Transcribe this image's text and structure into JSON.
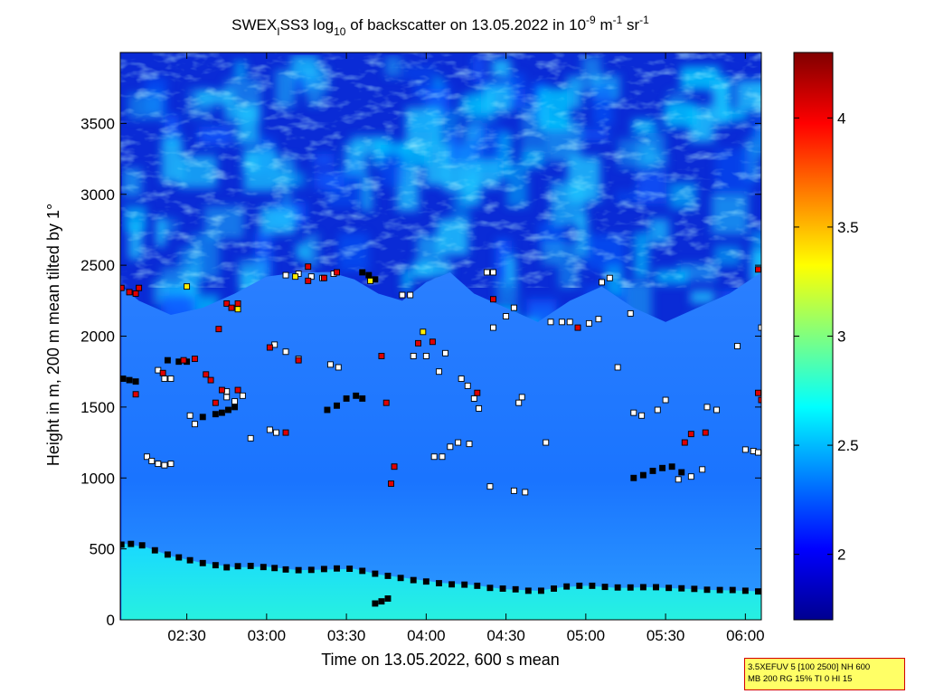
{
  "chart_data": {
    "type": "heatmap",
    "title": {
      "prefix": "SWEX",
      "sub_i": "I",
      "mid": "SS3 log",
      "sub_10": "10",
      "mid2": " of backscatter on 13.05.2022 in 10",
      "sup_m9": "-9",
      "unit_m": " m",
      "sup_m1a": "-1",
      "unit_sr": " sr",
      "sup_m1b": "-1"
    },
    "xlabel": "Time on 13.05.2022, 600 s mean",
    "ylabel": "Height in m, 200 m mean tilted by 1°",
    "x_range_hours": [
      2.083,
      6.1
    ],
    "y_range_m": [
      0,
      4000
    ],
    "x_ticks": [
      {
        "label": "02:30",
        "hour": 2.5
      },
      {
        "label": "03:00",
        "hour": 3.0
      },
      {
        "label": "03:30",
        "hour": 3.5
      },
      {
        "label": "04:00",
        "hour": 4.0
      },
      {
        "label": "04:30",
        "hour": 4.5
      },
      {
        "label": "05:00",
        "hour": 5.0
      },
      {
        "label": "05:30",
        "hour": 5.5
      },
      {
        "label": "06:00",
        "hour": 6.0
      }
    ],
    "y_ticks": [
      0,
      500,
      1000,
      1500,
      2000,
      2500,
      3000,
      3500
    ],
    "colorbar": {
      "range": [
        1.7,
        4.3
      ],
      "ticks": [
        {
          "label": "2",
          "value": 2.0
        },
        {
          "label": "2.5",
          "value": 2.5
        },
        {
          "label": "3",
          "value": 3.0
        },
        {
          "label": "3.5",
          "value": 3.5
        },
        {
          "label": "4",
          "value": 4.0
        }
      ],
      "colormap": "jet"
    },
    "layer_structure": {
      "surface_layer_top_m": [
        [
          2.09,
          540
        ],
        [
          2.25,
          510
        ],
        [
          2.4,
          450
        ],
        [
          2.6,
          400
        ],
        [
          2.8,
          370
        ],
        [
          3.0,
          375
        ],
        [
          3.2,
          350
        ],
        [
          3.4,
          355
        ],
        [
          3.55,
          360
        ],
        [
          3.7,
          320
        ],
        [
          3.9,
          290
        ],
        [
          4.1,
          260
        ],
        [
          4.3,
          245
        ],
        [
          4.5,
          215
        ],
        [
          4.7,
          205
        ],
        [
          4.85,
          230
        ],
        [
          5.0,
          240
        ],
        [
          5.2,
          225
        ],
        [
          5.4,
          230
        ],
        [
          5.6,
          220
        ],
        [
          5.8,
          210
        ],
        [
          6.0,
          205
        ],
        [
          6.1,
          200
        ]
      ],
      "boundary_layer_top_m": [
        [
          2.09,
          2350
        ],
        [
          2.2,
          2250
        ],
        [
          2.4,
          2150
        ],
        [
          2.6,
          2200
        ],
        [
          2.8,
          2300
        ],
        [
          3.0,
          2420
        ],
        [
          3.2,
          2450
        ],
        [
          3.4,
          2450
        ],
        [
          3.55,
          2400
        ],
        [
          3.7,
          2300
        ],
        [
          3.85,
          2250
        ],
        [
          4.0,
          2380
        ],
        [
          4.15,
          2450
        ],
        [
          4.3,
          2300
        ],
        [
          4.5,
          2200
        ],
        [
          4.7,
          2100
        ],
        [
          4.9,
          2250
        ],
        [
          5.1,
          2350
        ],
        [
          5.3,
          2200
        ],
        [
          5.5,
          2100
        ],
        [
          5.7,
          2200
        ],
        [
          5.9,
          2300
        ],
        [
          6.1,
          2450
        ]
      ]
    },
    "series": [
      {
        "marker": "black",
        "points": [
          [
            2.09,
            530
          ],
          [
            2.15,
            535
          ],
          [
            2.22,
            525
          ],
          [
            2.3,
            490
          ],
          [
            2.38,
            460
          ],
          [
            2.45,
            440
          ],
          [
            2.52,
            420
          ],
          [
            2.6,
            400
          ],
          [
            2.68,
            385
          ],
          [
            2.75,
            370
          ],
          [
            2.82,
            378
          ],
          [
            2.9,
            380
          ],
          [
            2.98,
            372
          ],
          [
            3.05,
            365
          ],
          [
            3.12,
            355
          ],
          [
            3.2,
            350
          ],
          [
            3.28,
            352
          ],
          [
            3.36,
            358
          ],
          [
            3.44,
            362
          ],
          [
            3.52,
            360
          ],
          [
            3.6,
            345
          ],
          [
            3.68,
            325
          ],
          [
            3.76,
            310
          ],
          [
            3.84,
            295
          ],
          [
            3.92,
            280
          ],
          [
            4.0,
            270
          ],
          [
            4.08,
            258
          ],
          [
            4.16,
            250
          ],
          [
            4.24,
            248
          ],
          [
            4.32,
            240
          ],
          [
            4.4,
            225
          ],
          [
            4.48,
            220
          ],
          [
            4.56,
            215
          ],
          [
            4.64,
            205
          ],
          [
            4.72,
            205
          ],
          [
            4.8,
            220
          ],
          [
            4.88,
            235
          ],
          [
            4.96,
            240
          ],
          [
            5.04,
            240
          ],
          [
            5.12,
            232
          ],
          [
            5.2,
            228
          ],
          [
            5.28,
            228
          ],
          [
            5.36,
            230
          ],
          [
            5.44,
            230
          ],
          [
            5.52,
            225
          ],
          [
            5.6,
            222
          ],
          [
            5.68,
            218
          ],
          [
            5.76,
            212
          ],
          [
            5.84,
            210
          ],
          [
            5.92,
            210
          ],
          [
            6.0,
            205
          ],
          [
            6.08,
            200
          ],
          [
            3.68,
            115
          ],
          [
            3.72,
            130
          ],
          [
            3.76,
            150
          ],
          [
            2.6,
            1430
          ],
          [
            2.68,
            1450
          ],
          [
            2.72,
            1460
          ],
          [
            2.76,
            1480
          ],
          [
            2.8,
            1500
          ],
          [
            3.38,
            1480
          ],
          [
            3.44,
            1510
          ],
          [
            3.5,
            1560
          ],
          [
            3.56,
            1580
          ],
          [
            3.6,
            1560
          ],
          [
            5.3,
            1000
          ],
          [
            5.36,
            1020
          ],
          [
            5.42,
            1050
          ],
          [
            5.48,
            1070
          ],
          [
            5.54,
            1080
          ],
          [
            5.6,
            1040
          ],
          [
            2.1,
            1700
          ],
          [
            2.14,
            1690
          ],
          [
            2.18,
            1680
          ],
          [
            3.6,
            2450
          ],
          [
            3.64,
            2430
          ],
          [
            3.68,
            2400
          ],
          [
            2.38,
            1830
          ],
          [
            2.45,
            1820
          ],
          [
            2.5,
            1820
          ]
        ]
      },
      {
        "marker": "white",
        "points": [
          [
            2.25,
            1150
          ],
          [
            2.28,
            1120
          ],
          [
            2.32,
            1100
          ],
          [
            2.36,
            1090
          ],
          [
            2.4,
            1100
          ],
          [
            2.32,
            1760
          ],
          [
            2.36,
            1700
          ],
          [
            2.4,
            1700
          ],
          [
            2.75,
            1570
          ],
          [
            2.8,
            1540
          ],
          [
            2.85,
            1580
          ],
          [
            3.02,
            1340
          ],
          [
            3.06,
            1320
          ],
          [
            3.05,
            1940
          ],
          [
            3.12,
            1890
          ],
          [
            3.2,
            1840
          ],
          [
            3.4,
            1800
          ],
          [
            3.45,
            1780
          ],
          [
            3.12,
            2430
          ],
          [
            3.2,
            2440
          ],
          [
            3.28,
            2420
          ],
          [
            3.35,
            2410
          ],
          [
            3.42,
            2440
          ],
          [
            3.85,
            2290
          ],
          [
            3.9,
            2290
          ],
          [
            3.92,
            1860
          ],
          [
            4.0,
            1860
          ],
          [
            4.08,
            1750
          ],
          [
            4.12,
            1880
          ],
          [
            4.05,
            1150
          ],
          [
            4.1,
            1150
          ],
          [
            4.15,
            1220
          ],
          [
            4.2,
            1250
          ],
          [
            4.27,
            1240
          ],
          [
            4.22,
            1700
          ],
          [
            4.26,
            1650
          ],
          [
            4.33,
            1490
          ],
          [
            4.4,
            940
          ],
          [
            4.55,
            910
          ],
          [
            4.62,
            900
          ],
          [
            4.42,
            2060
          ],
          [
            4.5,
            2140
          ],
          [
            4.55,
            2200
          ],
          [
            4.58,
            1530
          ],
          [
            4.6,
            1570
          ],
          [
            4.75,
            1250
          ],
          [
            4.78,
            2100
          ],
          [
            4.85,
            2100
          ],
          [
            4.9,
            2100
          ],
          [
            5.02,
            2090
          ],
          [
            5.08,
            2120
          ],
          [
            5.1,
            2380
          ],
          [
            5.15,
            2410
          ],
          [
            5.2,
            1780
          ],
          [
            5.28,
            2160
          ],
          [
            5.3,
            1460
          ],
          [
            5.35,
            1440
          ],
          [
            5.45,
            1480
          ],
          [
            5.5,
            1550
          ],
          [
            5.76,
            1500
          ],
          [
            5.82,
            1480
          ],
          [
            5.95,
            1930
          ],
          [
            6.0,
            1200
          ],
          [
            6.05,
            1190
          ],
          [
            6.08,
            1180
          ],
          [
            6.1,
            2060
          ],
          [
            5.58,
            990
          ],
          [
            5.66,
            1010
          ],
          [
            5.73,
            1060
          ],
          [
            4.38,
            2450
          ],
          [
            4.42,
            2450
          ],
          [
            2.75,
            1610
          ],
          [
            2.9,
            1280
          ],
          [
            2.55,
            1380
          ],
          [
            2.52,
            1440
          ],
          [
            4.3,
            1560
          ]
        ]
      },
      {
        "marker": "red",
        "points": [
          [
            2.09,
            2340
          ],
          [
            2.14,
            2310
          ],
          [
            2.18,
            2300
          ],
          [
            2.2,
            2340
          ],
          [
            2.18,
            1590
          ],
          [
            2.35,
            1740
          ],
          [
            2.48,
            1830
          ],
          [
            2.55,
            1840
          ],
          [
            2.62,
            1730
          ],
          [
            2.65,
            1690
          ],
          [
            2.68,
            1530
          ],
          [
            2.7,
            2050
          ],
          [
            2.75,
            2230
          ],
          [
            2.78,
            2200
          ],
          [
            2.82,
            1620
          ],
          [
            3.02,
            1920
          ],
          [
            3.12,
            1320
          ],
          [
            3.2,
            1830
          ],
          [
            3.26,
            2490
          ],
          [
            3.36,
            2410
          ],
          [
            3.44,
            2450
          ],
          [
            3.72,
            1860
          ],
          [
            3.75,
            1530
          ],
          [
            3.78,
            960
          ],
          [
            3.8,
            1080
          ],
          [
            3.95,
            1950
          ],
          [
            4.04,
            1960
          ],
          [
            4.32,
            1600
          ],
          [
            4.42,
            2260
          ],
          [
            4.95,
            2060
          ],
          [
            5.62,
            1250
          ],
          [
            5.66,
            1310
          ],
          [
            5.75,
            1320
          ],
          [
            6.08,
            1600
          ],
          [
            6.1,
            1550
          ],
          [
            6.08,
            2470
          ],
          [
            6.12,
            2490
          ],
          [
            2.72,
            1620
          ],
          [
            2.82,
            2230
          ],
          [
            3.26,
            2390
          ]
        ]
      },
      {
        "marker": "yellow",
        "points": [
          [
            2.5,
            2350
          ],
          [
            2.82,
            2190
          ],
          [
            3.18,
            2420
          ],
          [
            3.98,
            2030
          ],
          [
            3.65,
            2390
          ]
        ]
      }
    ],
    "annotation": {
      "line1": "3.5XEFUV 5 [100 2500] NH 600",
      "line2": "MB 200 RG 15% TI 0 HI 15"
    }
  }
}
